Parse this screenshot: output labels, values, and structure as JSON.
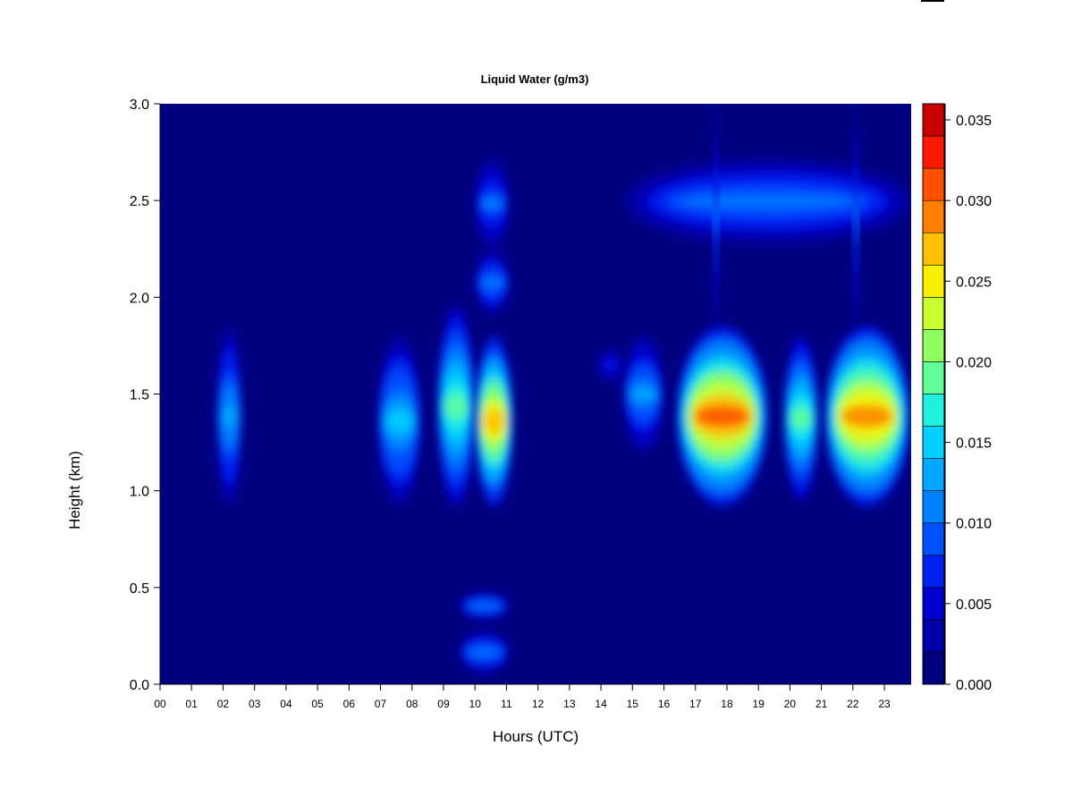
{
  "chart_data": {
    "type": "heatmap",
    "title": "Liquid Water (g/m3)",
    "xlabel": "Hours (UTC)",
    "ylabel": "Height (km)",
    "xlim": [
      0,
      23.85
    ],
    "ylim": [
      0,
      3.0
    ],
    "x_ticks": [
      {
        "v": 0,
        "label": "00"
      },
      {
        "v": 1,
        "label": "01"
      },
      {
        "v": 2,
        "label": "02"
      },
      {
        "v": 3,
        "label": "03"
      },
      {
        "v": 4,
        "label": "04"
      },
      {
        "v": 5,
        "label": "05"
      },
      {
        "v": 6,
        "label": "06"
      },
      {
        "v": 7,
        "label": "07"
      },
      {
        "v": 8,
        "label": "08"
      },
      {
        "v": 9,
        "label": "09"
      },
      {
        "v": 10,
        "label": "10"
      },
      {
        "v": 11,
        "label": "11"
      },
      {
        "v": 12,
        "label": "12"
      },
      {
        "v": 13,
        "label": "13"
      },
      {
        "v": 14,
        "label": "14"
      },
      {
        "v": 15,
        "label": "15"
      },
      {
        "v": 16,
        "label": "16"
      },
      {
        "v": 17,
        "label": "17"
      },
      {
        "v": 18,
        "label": "18"
      },
      {
        "v": 19,
        "label": "19"
      },
      {
        "v": 20,
        "label": "20"
      },
      {
        "v": 21,
        "label": "21"
      },
      {
        "v": 22,
        "label": "22"
      },
      {
        "v": 23,
        "label": "23"
      }
    ],
    "y_ticks": [
      {
        "v": 0,
        "label": "0.0"
      },
      {
        "v": 0.5,
        "label": "0.5"
      },
      {
        "v": 1.0,
        "label": "1.0"
      },
      {
        "v": 1.5,
        "label": "1.5"
      },
      {
        "v": 2.0,
        "label": "2.0"
      },
      {
        "v": 2.5,
        "label": "2.5"
      },
      {
        "v": 3.0,
        "label": "3.0"
      }
    ],
    "colorbar": {
      "range": [
        0,
        0.036
      ],
      "levels": [
        0,
        0.002,
        0.004,
        0.006,
        0.008,
        0.01,
        0.012,
        0.014,
        0.016,
        0.018,
        0.02,
        0.022,
        0.024,
        0.026,
        0.028,
        0.03,
        0.032,
        0.034,
        0.036
      ],
      "colors": [
        "#000080",
        "#0000a8",
        "#0000d0",
        "#0020f0",
        "#0050ff",
        "#0080ff",
        "#00a8ff",
        "#00d0ff",
        "#20f0e0",
        "#60ff98",
        "#90ff60",
        "#c8ff30",
        "#f8f000",
        "#ffc000",
        "#ff8000",
        "#ff5000",
        "#ff1800",
        "#c80000",
        "#800000"
      ],
      "ticks": [
        {
          "v": 0,
          "label": "0.000"
        },
        {
          "v": 0.005,
          "label": "0.005"
        },
        {
          "v": 0.01,
          "label": "0.010"
        },
        {
          "v": 0.015,
          "label": "0.015"
        },
        {
          "v": 0.02,
          "label": "0.020"
        },
        {
          "v": 0.025,
          "label": "0.025"
        },
        {
          "v": 0.03,
          "label": "0.030"
        },
        {
          "v": 0.035,
          "label": "0.035"
        }
      ]
    },
    "background_value": 0.0,
    "cloud_blobs": [
      {
        "t0": 1.8,
        "t1": 2.6,
        "z0": 0.92,
        "z1": 1.85,
        "peak": 0.013
      },
      {
        "t0": 6.9,
        "t1": 8.3,
        "z0": 0.92,
        "z1": 1.8,
        "peak": 0.014
      },
      {
        "t0": 8.8,
        "t1": 10.0,
        "z0": 0.92,
        "z1": 1.95,
        "peak": 0.018
      },
      {
        "t0": 10.0,
        "t1": 11.2,
        "z0": 0.92,
        "z1": 1.8,
        "peak": 0.027
      },
      {
        "t0": 10.0,
        "t1": 11.1,
        "z0": 1.9,
        "z1": 2.25,
        "peak": 0.011
      },
      {
        "t0": 10.0,
        "t1": 11.1,
        "z0": 2.25,
        "z1": 2.72,
        "peak": 0.01
      },
      {
        "t0": 9.5,
        "t1": 11.1,
        "z0": 0.05,
        "z1": 0.28,
        "peak": 0.011
      },
      {
        "t0": 9.5,
        "t1": 11.1,
        "z0": 0.33,
        "z1": 0.48,
        "peak": 0.011
      },
      {
        "t0": 14.7,
        "t1": 16.0,
        "z0": 1.2,
        "z1": 1.8,
        "peak": 0.012
      },
      {
        "t0": 16.4,
        "t1": 19.3,
        "z0": 0.92,
        "z1": 1.85,
        "peak": 0.03
      },
      {
        "t0": 19.8,
        "t1": 20.9,
        "z0": 0.95,
        "z1": 1.8,
        "peak": 0.019
      },
      {
        "t0": 21.1,
        "t1": 23.8,
        "z0": 0.92,
        "z1": 1.85,
        "peak": 0.029
      },
      {
        "t0": 14.8,
        "t1": 23.8,
        "z0": 2.27,
        "z1": 2.72,
        "peak": 0.011
      },
      {
        "t0": 17.55,
        "t1": 17.75,
        "z0": 1.8,
        "z1": 3.0,
        "peak": 0.01
      },
      {
        "t0": 22.0,
        "t1": 22.2,
        "z0": 1.8,
        "z1": 3.0,
        "peak": 0.01
      },
      {
        "t0": 13.9,
        "t1": 14.7,
        "z0": 1.55,
        "z1": 1.75,
        "peak": 0.006
      }
    ]
  }
}
